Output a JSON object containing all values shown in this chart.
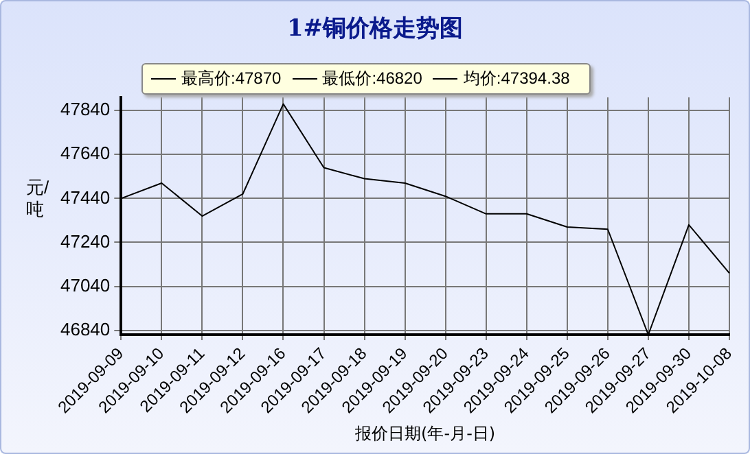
{
  "chart_data": {
    "type": "line",
    "title": "1#铜价格走势图",
    "xlabel": "报价日期(年-月-日)",
    "ylabel": "元/吨",
    "annotations": [
      "最高价:47870",
      "最低价:46820",
      "均价:47394.38"
    ],
    "categories": [
      "2019-09-09",
      "2019-09-10",
      "2019-09-11",
      "2019-09-12",
      "2019-09-16",
      "2019-09-17",
      "2019-09-18",
      "2019-09-19",
      "2019-09-20",
      "2019-09-23",
      "2019-09-24",
      "2019-09-25",
      "2019-09-26",
      "2019-09-27",
      "2019-09-30",
      "2019-10-08"
    ],
    "series": [
      {
        "color": "#000000",
        "values": [
          47440,
          47510,
          47360,
          47460,
          47870,
          47580,
          47530,
          47510,
          47450,
          47370,
          47370,
          47310,
          47300,
          46820,
          47320,
          47100
        ]
      }
    ],
    "ylim": [
      46820,
      47900
    ],
    "yticks": [
      46840,
      47040,
      47240,
      47440,
      47640,
      47840
    ],
    "grid": true,
    "legend": false,
    "marker": "none",
    "line_style": "solid"
  }
}
